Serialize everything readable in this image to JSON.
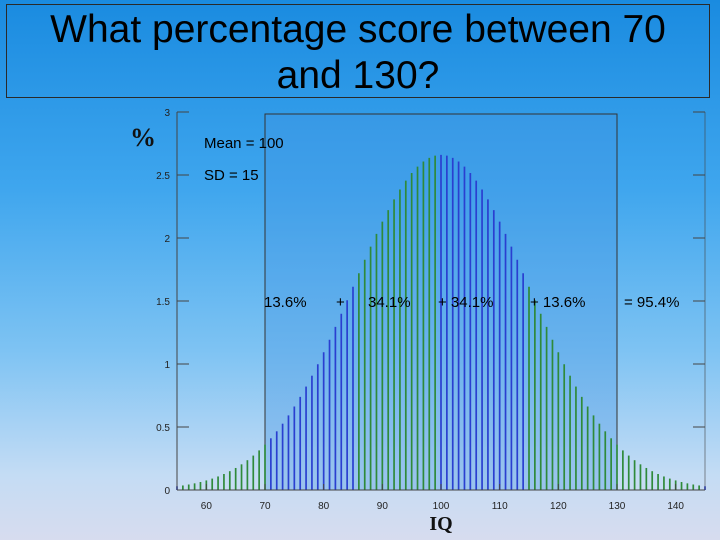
{
  "title": "What percentage score between 70 and 130?",
  "chart_data": {
    "type": "bar",
    "xlabel": "IQ",
    "ylabel": "%",
    "xlim": [
      55,
      145
    ],
    "ylim": [
      0,
      3
    ],
    "x_ticks": [
      60,
      70,
      80,
      90,
      100,
      110,
      120,
      130,
      140
    ],
    "y_ticks": [
      0,
      0.5,
      1,
      1.5,
      2,
      2.5,
      3
    ],
    "x_tick_labels": [
      "60",
      "70",
      "80",
      "90",
      "100",
      "110",
      "120",
      "130",
      "140"
    ],
    "y_tick_labels": [
      "0",
      "0.5",
      "1",
      "1.5",
      "2",
      "2.5",
      "3"
    ],
    "distribution": {
      "mean": 100,
      "sd": 15,
      "x_start": 55,
      "x_end": 145,
      "x_step": 1
    },
    "highlight_range": [
      70,
      130
    ],
    "band_colors": {
      "green": "#2f8a3a",
      "blue": "#2a3fd0"
    },
    "annotations": {
      "mean": "Mean = 100",
      "sd": "SD = 15",
      "p1": "13.6%",
      "plus1": "+",
      "p2": "34.1%",
      "plus2": "+ 34.1%",
      "plus3": "+ 13.6%",
      "total": "= 95.4%"
    }
  }
}
